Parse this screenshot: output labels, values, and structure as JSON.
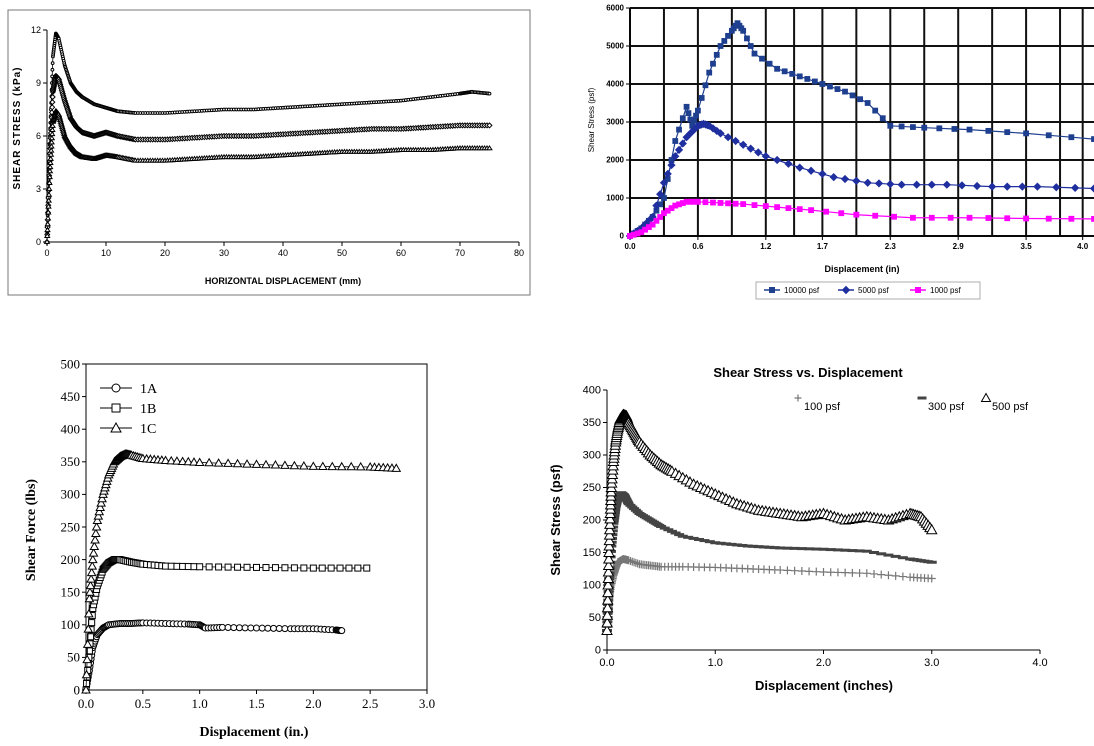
{
  "chart_data": [
    {
      "type": "line",
      "xlabel": "HORIZONTAL DISPLACEMENT (mm)",
      "ylabel": "SHEAR STRESS (kPa)",
      "xlim": [
        0,
        80
      ],
      "ylim": [
        0,
        12
      ],
      "xticks": [
        0,
        10,
        20,
        30,
        40,
        50,
        60,
        70,
        80
      ],
      "yticks": [
        0,
        3,
        6,
        9,
        12
      ],
      "grid": false,
      "series": [
        {
          "marker": "circle",
          "x": [
            0,
            0.5,
            1,
            1.5,
            2,
            3,
            4,
            5,
            6,
            8,
            10,
            12,
            15,
            20,
            25,
            30,
            35,
            40,
            45,
            50,
            55,
            60,
            65,
            70,
            72,
            75
          ],
          "y": [
            0,
            6,
            10.5,
            11.8,
            11.5,
            10,
            9,
            8.5,
            8.2,
            7.8,
            7.6,
            7.4,
            7.3,
            7.3,
            7.4,
            7.5,
            7.5,
            7.6,
            7.7,
            7.8,
            7.9,
            8.0,
            8.2,
            8.4,
            8.5,
            8.4
          ]
        },
        {
          "marker": "diamond",
          "x": [
            0,
            0.5,
            1,
            1.5,
            2,
            3,
            4,
            5,
            6,
            8,
            10,
            12,
            15,
            20,
            25,
            30,
            35,
            40,
            45,
            50,
            55,
            60,
            65,
            70,
            75
          ],
          "y": [
            0,
            5,
            8.5,
            9.4,
            9.2,
            8,
            7,
            6.5,
            6.2,
            6.0,
            6.2,
            6.0,
            5.8,
            5.8,
            5.9,
            6.0,
            6.0,
            6.1,
            6.2,
            6.3,
            6.4,
            6.4,
            6.5,
            6.6,
            6.6
          ]
        },
        {
          "marker": "triangle",
          "x": [
            0,
            0.5,
            1,
            1.5,
            2,
            3,
            4,
            5,
            6,
            8,
            10,
            12,
            15,
            20,
            25,
            30,
            35,
            40,
            45,
            50,
            55,
            60,
            65,
            70,
            75
          ],
          "y": [
            0,
            4,
            6.8,
            7.4,
            7.2,
            6,
            5.4,
            5.0,
            4.8,
            4.7,
            4.9,
            4.8,
            4.6,
            4.6,
            4.7,
            4.8,
            4.8,
            4.9,
            5.0,
            5.1,
            5.1,
            5.2,
            5.2,
            5.3,
            5.3
          ]
        }
      ]
    },
    {
      "type": "line",
      "xlabel": "Displacement (in)",
      "ylabel": "Shear Stress (psf)",
      "xlim": [
        0,
        4.1
      ],
      "ylim": [
        0,
        6000
      ],
      "xtick_labels": [
        "0.0",
        "0.6",
        "1.2",
        "1.7",
        "2.3",
        "2.9",
        "3.5",
        "4.0"
      ],
      "xticks": [
        0,
        0.6,
        1.2,
        1.7,
        2.3,
        2.9,
        3.5,
        4.0
      ],
      "yticks": [
        0,
        1000,
        2000,
        3000,
        4000,
        5000,
        6000
      ],
      "grid": true,
      "legend": "bottom",
      "series": [
        {
          "name": "10000 psf",
          "color": "#1f3f8f",
          "marker": "square",
          "x": [
            0,
            0.1,
            0.2,
            0.3,
            0.4,
            0.5,
            0.55,
            0.6,
            0.7,
            0.8,
            0.9,
            0.95,
            1.0,
            1.1,
            1.3,
            1.5,
            1.7,
            1.9,
            2.1,
            2.3,
            2.6,
            3.0,
            3.5,
            4.1
          ],
          "y": [
            0,
            200,
            500,
            1000,
            2500,
            3400,
            2900,
            3300,
            4300,
            5000,
            5400,
            5600,
            5400,
            4800,
            4400,
            4200,
            4000,
            3800,
            3500,
            2900,
            2850,
            2800,
            2700,
            2550
          ]
        },
        {
          "name": "5000 psf",
          "color": "#1f2f9f",
          "marker": "diamond",
          "x": [
            0,
            0.1,
            0.2,
            0.3,
            0.4,
            0.5,
            0.6,
            0.65,
            0.7,
            0.8,
            1.0,
            1.2,
            1.5,
            1.8,
            2.1,
            2.4,
            2.8,
            3.2,
            3.6,
            4.1
          ],
          "y": [
            0,
            200,
            500,
            1400,
            2100,
            2600,
            2900,
            2950,
            2900,
            2700,
            2400,
            2100,
            1800,
            1550,
            1400,
            1350,
            1350,
            1300,
            1300,
            1250
          ]
        },
        {
          "name": "1000 psf",
          "color": "#ff00ff",
          "marker": "square",
          "x": [
            0,
            0.1,
            0.2,
            0.3,
            0.4,
            0.5,
            0.6,
            0.8,
            1.0,
            1.3,
            1.6,
            2.0,
            2.5,
            3.0,
            3.5,
            4.1
          ],
          "y": [
            0,
            100,
            300,
            600,
            800,
            900,
            900,
            870,
            840,
            760,
            680,
            560,
            480,
            480,
            460,
            450
          ]
        }
      ]
    },
    {
      "type": "line",
      "xlabel": "Displacement (in.)",
      "ylabel": "Shear Force (lbs)",
      "xlim": [
        0,
        3.0
      ],
      "ylim": [
        0,
        500
      ],
      "xtick_labels": [
        "0.0",
        "0.5",
        "1.0",
        "1.5",
        "2.0",
        "2.5",
        "3.0"
      ],
      "xticks": [
        0,
        0.5,
        1.0,
        1.5,
        2.0,
        2.5,
        3.0
      ],
      "yticks": [
        0,
        50,
        100,
        150,
        200,
        250,
        300,
        350,
        400,
        450,
        500
      ],
      "grid": false,
      "legend": "top-left",
      "series": [
        {
          "name": "1A",
          "marker": "circle",
          "x": [
            0,
            0.03,
            0.06,
            0.1,
            0.15,
            0.2,
            0.3,
            0.4,
            0.5,
            0.7,
            0.9,
            1.0,
            1.05,
            1.2,
            1.5,
            1.8,
            2.0,
            2.2,
            2.25
          ],
          "y": [
            0,
            30,
            65,
            85,
            95,
            100,
            102,
            102,
            103,
            102,
            101,
            100,
            95,
            96,
            95,
            94,
            94,
            92,
            91
          ]
        },
        {
          "name": "1B",
          "marker": "square",
          "x": [
            0,
            0.03,
            0.06,
            0.1,
            0.15,
            0.2,
            0.25,
            0.3,
            0.4,
            0.5,
            0.7,
            1.0,
            1.5,
            2.0,
            2.47
          ],
          "y": [
            0,
            60,
            125,
            160,
            185,
            195,
            200,
            200,
            196,
            193,
            190,
            189,
            188,
            187,
            187
          ]
        },
        {
          "name": "1C",
          "marker": "triangle",
          "x": [
            0,
            0.03,
            0.06,
            0.1,
            0.15,
            0.2,
            0.25,
            0.3,
            0.35,
            0.4,
            0.5,
            0.7,
            1.0,
            1.5,
            2.0,
            2.5,
            2.73
          ],
          "y": [
            0,
            140,
            200,
            260,
            300,
            330,
            350,
            358,
            362,
            360,
            355,
            352,
            349,
            346,
            343,
            342,
            340
          ]
        }
      ]
    },
    {
      "type": "scatter",
      "title": "Shear Stress vs. Displacement",
      "xlabel": "Displacement (inches)",
      "ylabel": "Shear Stress (psf)",
      "xlim": [
        0,
        4.0
      ],
      "ylim": [
        0,
        400
      ],
      "xtick_labels": [
        "0.0",
        "1.0",
        "2.0",
        "3.0",
        "4.0"
      ],
      "xticks": [
        0,
        1.0,
        2.0,
        3.0,
        4.0
      ],
      "yticks": [
        0,
        50,
        100,
        150,
        200,
        250,
        300,
        350,
        400
      ],
      "grid": false,
      "legend": "top-right",
      "series": [
        {
          "name": "100 psf",
          "marker": "plus",
          "color": "#777777",
          "x": [
            0,
            0.01,
            0.02,
            0.04,
            0.06,
            0.08,
            0.1,
            0.15,
            0.2,
            0.3,
            0.4,
            0.5,
            0.7,
            1.0,
            1.3,
            1.6,
            2.0,
            2.4,
            2.8,
            3.0
          ],
          "y": [
            30,
            60,
            80,
            100,
            115,
            125,
            135,
            140,
            138,
            132,
            130,
            128,
            128,
            127,
            125,
            123,
            120,
            118,
            112,
            110
          ]
        },
        {
          "name": "300 psf",
          "marker": "dash",
          "color": "#444444",
          "x": [
            0,
            0.01,
            0.02,
            0.04,
            0.06,
            0.08,
            0.1,
            0.13,
            0.16,
            0.2,
            0.3,
            0.4,
            0.5,
            0.7,
            1.0,
            1.3,
            1.6,
            2.0,
            2.4,
            2.8,
            3.0
          ],
          "y": [
            30,
            70,
            110,
            160,
            195,
            220,
            235,
            242,
            238,
            225,
            210,
            200,
            190,
            175,
            165,
            160,
            157,
            155,
            152,
            140,
            135
          ]
        },
        {
          "name": "500 psf",
          "marker": "triangle",
          "color": "#000000",
          "x": [
            0,
            0.01,
            0.02,
            0.03,
            0.04,
            0.06,
            0.08,
            0.1,
            0.12,
            0.15,
            0.18,
            0.2,
            0.25,
            0.3,
            0.4,
            0.5,
            0.6,
            0.8,
            1.0,
            1.2,
            1.4,
            1.6,
            1.8,
            2.0,
            2.2,
            2.4,
            2.6,
            2.8,
            2.9,
            3.0
          ],
          "y": [
            30,
            100,
            160,
            210,
            250,
            290,
            320,
            340,
            355,
            362,
            360,
            350,
            335,
            320,
            300,
            285,
            275,
            255,
            240,
            225,
            215,
            210,
            205,
            210,
            200,
            205,
            200,
            210,
            205,
            185
          ]
        }
      ]
    }
  ]
}
